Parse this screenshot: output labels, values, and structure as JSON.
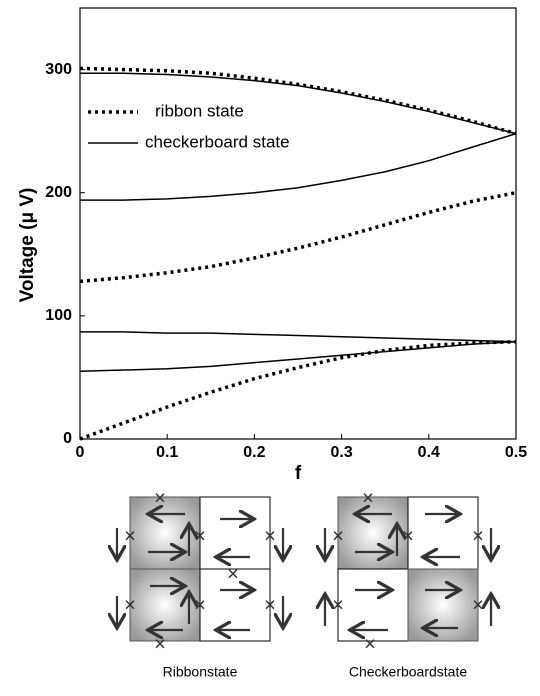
{
  "chart_data": {
    "type": "line",
    "x_label": "f",
    "y_label": "Voltage  (μ V)",
    "x": [
      0,
      0.05,
      0.1,
      0.15,
      0.2,
      0.25,
      0.3,
      0.35,
      0.4,
      0.45,
      0.5
    ],
    "xlim": [
      0,
      0.5
    ],
    "xticks": [
      0,
      0.1,
      0.2,
      0.3,
      0.4,
      0.5
    ],
    "ylim": [
      0,
      350
    ],
    "yticks": [
      0,
      100,
      200,
      300
    ],
    "series": [
      {
        "name": "ribbon state",
        "color": "#000000",
        "style": "dotted",
        "values": [
          301,
          300,
          299,
          297,
          293,
          288,
          282,
          275,
          267,
          258,
          248
        ]
      },
      {
        "color": "#000000",
        "style": "dotted",
        "values": [
          128,
          131,
          135,
          140,
          147,
          155,
          164,
          174,
          184,
          193,
          200
        ]
      },
      {
        "color": "#000000",
        "style": "dotted",
        "values": [
          0,
          13,
          26,
          38,
          49,
          58,
          66,
          72,
          76,
          78,
          79
        ]
      },
      {
        "name": "checkerboard state",
        "color": "#000000",
        "style": "solid",
        "values": [
          297,
          297,
          296,
          294,
          291,
          287,
          281,
          274,
          266,
          257,
          248
        ]
      },
      {
        "color": "#000000",
        "style": "solid",
        "values": [
          194,
          194,
          195,
          197,
          200,
          204,
          210,
          217,
          226,
          237,
          248
        ]
      },
      {
        "color": "#000000",
        "style": "solid",
        "values": [
          87,
          87,
          86,
          86,
          85,
          84,
          83,
          82,
          81,
          80,
          79
        ]
      },
      {
        "color": "#000000",
        "style": "solid",
        "values": [
          55,
          56,
          57,
          59,
          62,
          65,
          68,
          71,
          74,
          77,
          79
        ]
      }
    ]
  },
  "diagrams": [
    {
      "label": "Ribbonstate"
    },
    {
      "label": "Checkerboardstate"
    }
  ]
}
